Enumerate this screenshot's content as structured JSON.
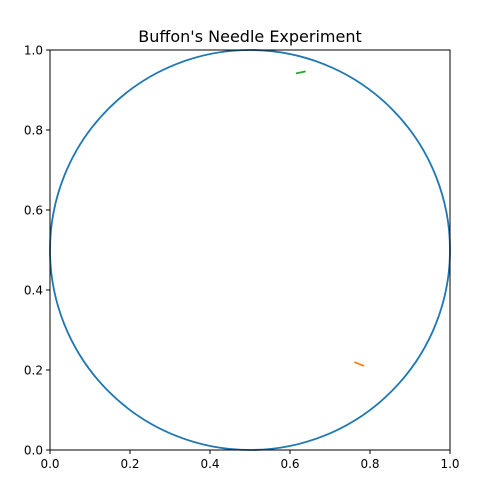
{
  "chart_data": {
    "type": "line",
    "title": "Buffon's Needle Experiment",
    "xlabel": "",
    "ylabel": "",
    "xlim": [
      0,
      1
    ],
    "ylim": [
      0,
      1
    ],
    "grid": false,
    "xticks": [
      "0.0",
      "0.2",
      "0.4",
      "0.6",
      "0.8",
      "1.0"
    ],
    "yticks": [
      "0.0",
      "0.2",
      "0.4",
      "0.6",
      "0.8",
      "1.0"
    ],
    "circle": {
      "center": [
        0.5,
        0.5
      ],
      "radius": 0.5,
      "color": "#1f77b4"
    },
    "series": [
      {
        "x": [
          0.763,
          0.783
        ],
        "y": [
          0.219,
          0.211
        ],
        "color": "#ff7f0e"
      },
      {
        "x": [
          0.617,
          0.637
        ],
        "y": [
          0.942,
          0.946
        ],
        "color": "#2ca02c"
      }
    ]
  }
}
